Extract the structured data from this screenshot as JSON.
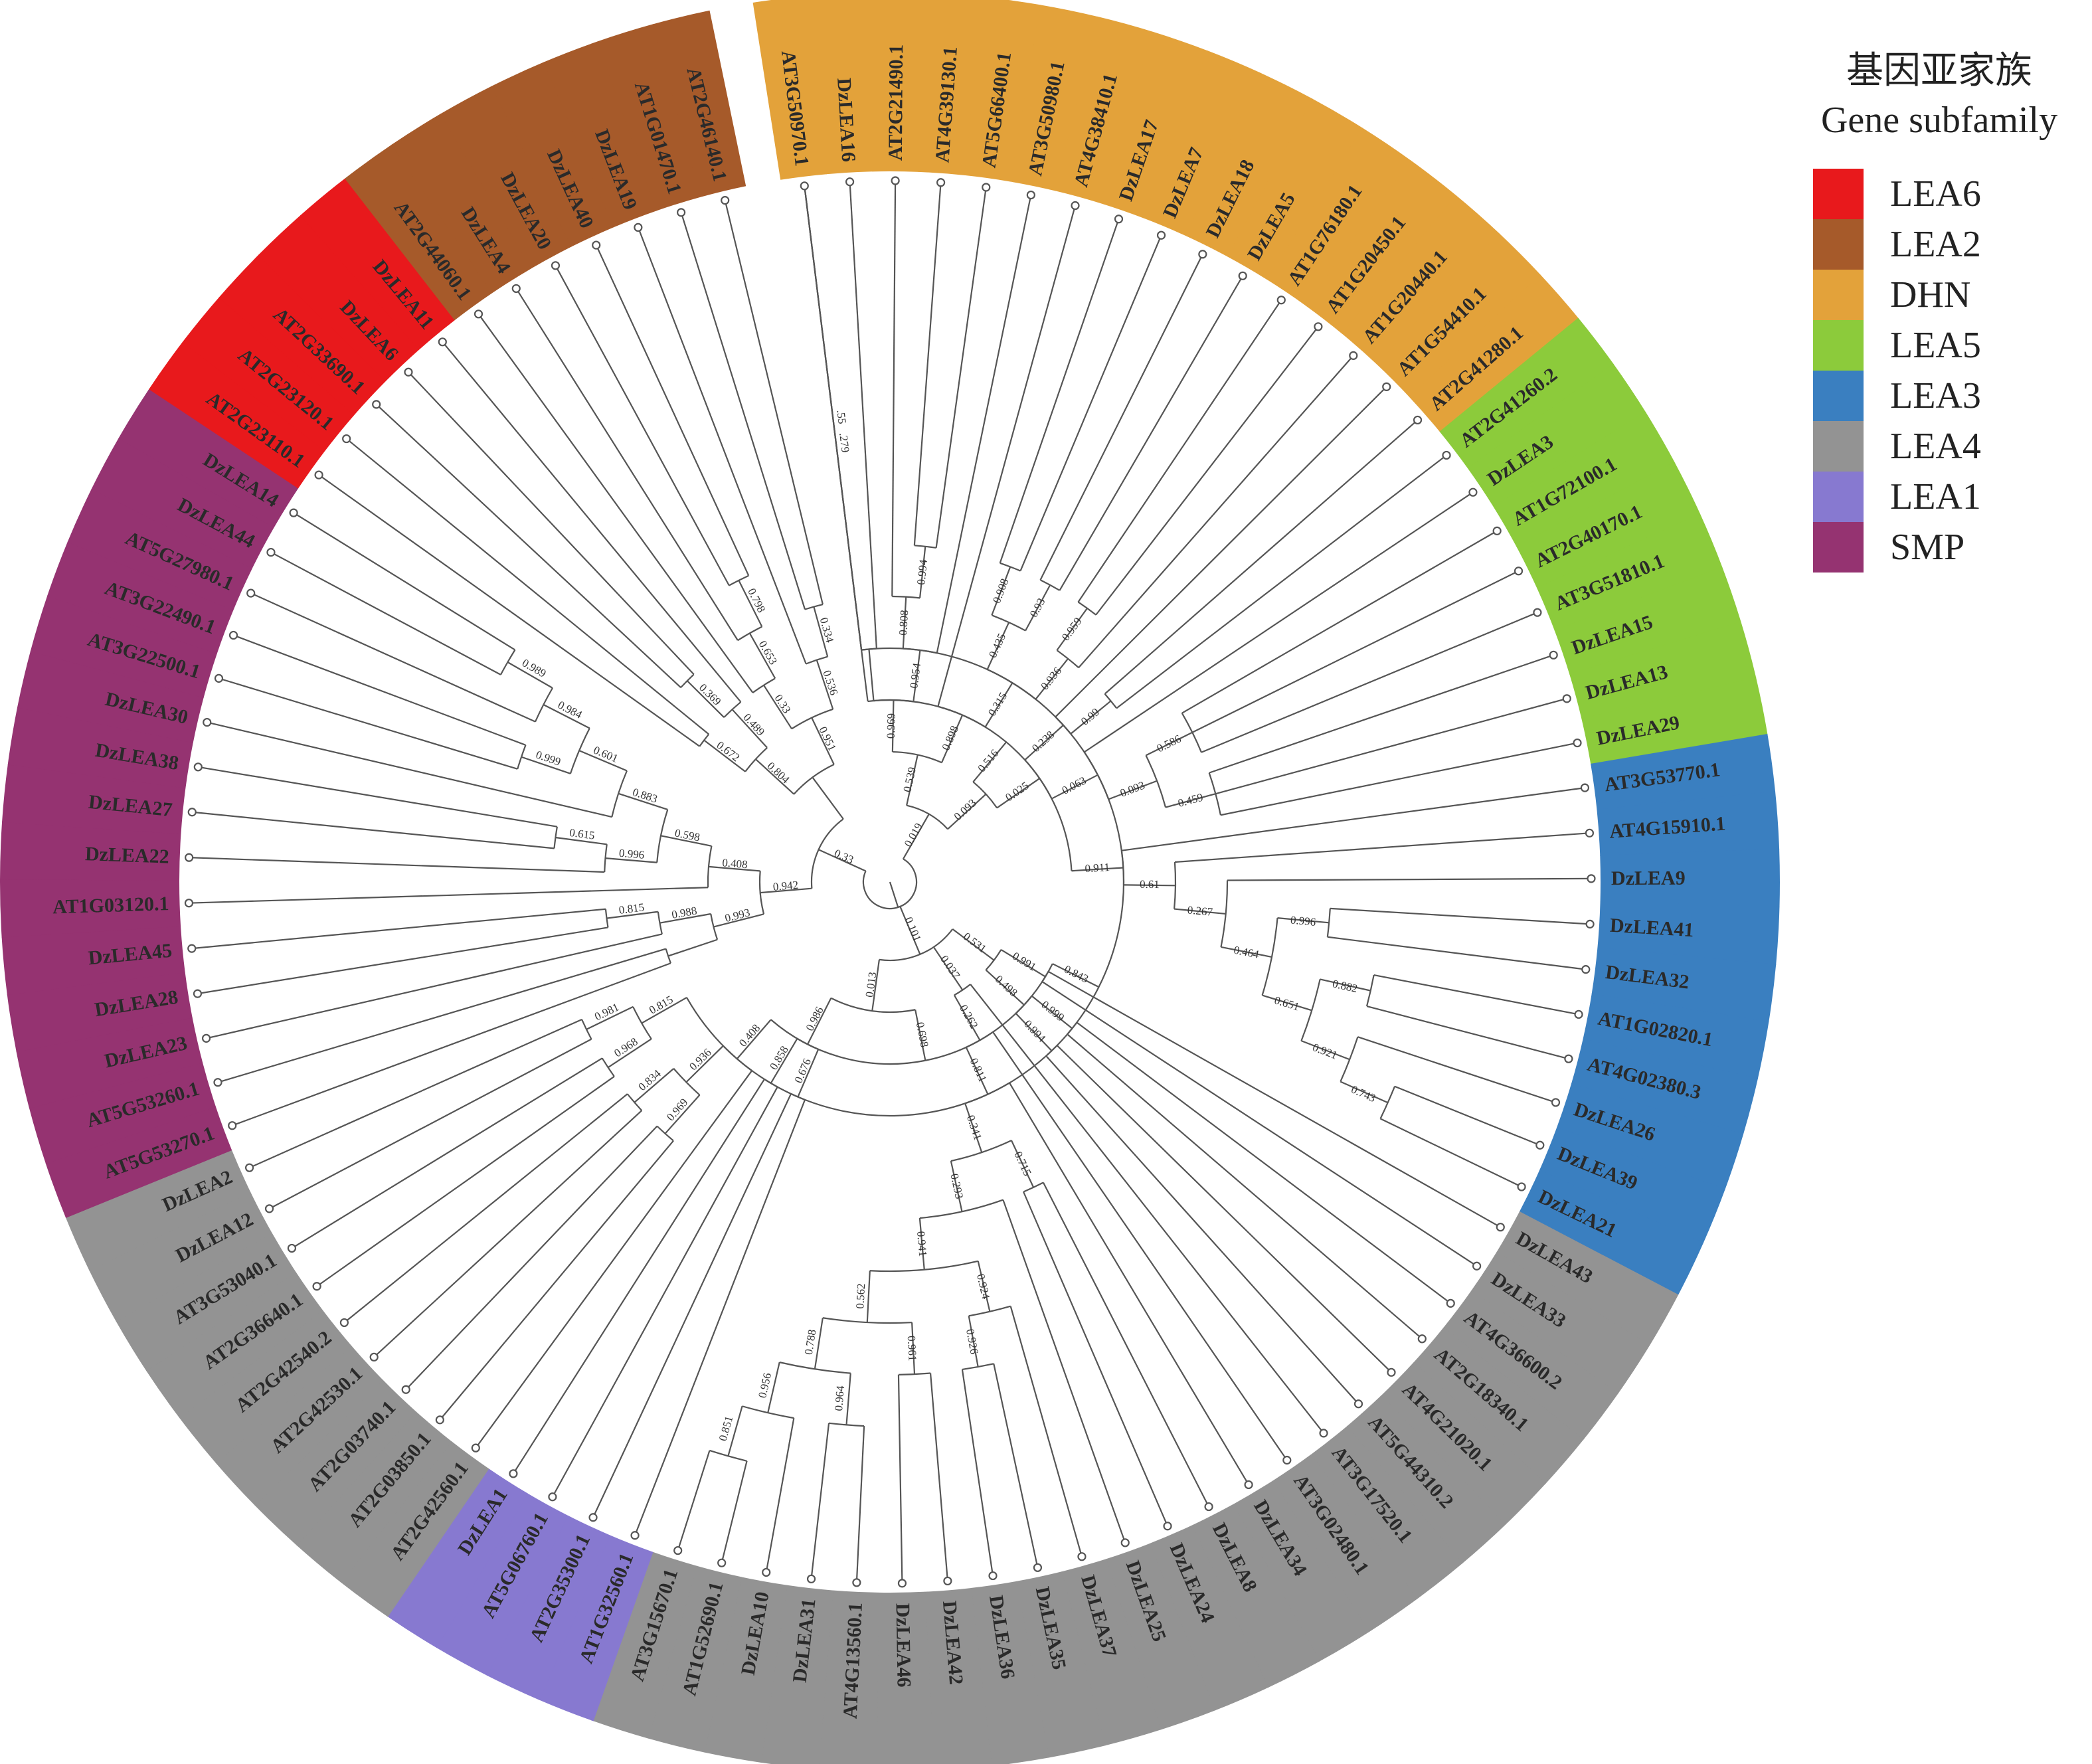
{
  "legend": {
    "title_zh": "基因亚家族",
    "title_en": "Gene subfamily",
    "items": [
      {
        "label": "LEA6",
        "color": "#e8191c"
      },
      {
        "label": "LEA2",
        "color": "#a65a2a"
      },
      {
        "label": "DHN",
        "color": "#e3a23a"
      },
      {
        "label": "LEA5",
        "color": "#8ccb3b"
      },
      {
        "label": "LEA3",
        "color": "#3a7fc0"
      },
      {
        "label": "LEA4",
        "color": "#939393"
      },
      {
        "label": "LEA1",
        "color": "#8779d0"
      },
      {
        "label": "SMP",
        "color": "#953371"
      }
    ]
  },
  "tree": {
    "leaves": [
      {
        "name": "AT3G50970.1",
        "family": "DHN"
      },
      {
        "name": "DzLEA16",
        "family": "DHN"
      },
      {
        "name": "AT2G21490.1",
        "family": "DHN"
      },
      {
        "name": "AT4G39130.1",
        "family": "DHN"
      },
      {
        "name": "AT5G66400.1",
        "family": "DHN"
      },
      {
        "name": "AT3G50980.1",
        "family": "DHN"
      },
      {
        "name": "AT4G38410.1",
        "family": "DHN"
      },
      {
        "name": "DzLEA17",
        "family": "DHN"
      },
      {
        "name": "DzLEA7",
        "family": "DHN"
      },
      {
        "name": "DzLEA18",
        "family": "DHN"
      },
      {
        "name": "DzLEA5",
        "family": "DHN"
      },
      {
        "name": "AT1G76180.1",
        "family": "DHN"
      },
      {
        "name": "AT1G20450.1",
        "family": "DHN"
      },
      {
        "name": "AT1G20440.1",
        "family": "DHN"
      },
      {
        "name": "AT1G54410.1",
        "family": "DHN"
      },
      {
        "name": "AT2G41280.1",
        "family": "DHN"
      },
      {
        "name": "AT2G41260.2",
        "family": "LEA5"
      },
      {
        "name": "DzLEA3",
        "family": "LEA5"
      },
      {
        "name": "AT1G72100.1",
        "family": "LEA5"
      },
      {
        "name": "AT2G40170.1",
        "family": "LEA5"
      },
      {
        "name": "AT3G51810.1",
        "family": "LEA5"
      },
      {
        "name": "DzLEA15",
        "family": "LEA5"
      },
      {
        "name": "DzLEA13",
        "family": "LEA5"
      },
      {
        "name": "DzLEA29",
        "family": "LEA5"
      },
      {
        "name": "AT3G53770.1",
        "family": "LEA3"
      },
      {
        "name": "AT4G15910.1",
        "family": "LEA3"
      },
      {
        "name": "DzLEA9",
        "family": "LEA3"
      },
      {
        "name": "DzLEA41",
        "family": "LEA3"
      },
      {
        "name": "DzLEA32",
        "family": "LEA3"
      },
      {
        "name": "AT1G02820.1",
        "family": "LEA3"
      },
      {
        "name": "AT4G02380.3",
        "family": "LEA3"
      },
      {
        "name": "DzLEA26",
        "family": "LEA3"
      },
      {
        "name": "DzLEA39",
        "family": "LEA3"
      },
      {
        "name": "DzLEA21",
        "family": "LEA3"
      },
      {
        "name": "DzLEA43",
        "family": "LEA4"
      },
      {
        "name": "DzLEA33",
        "family": "LEA4"
      },
      {
        "name": "AT4G36600.2",
        "family": "LEA4"
      },
      {
        "name": "AT2G18340.1",
        "family": "LEA4"
      },
      {
        "name": "AT4G21020.1",
        "family": "LEA4"
      },
      {
        "name": "AT5G44310.2",
        "family": "LEA4"
      },
      {
        "name": "AT3G17520.1",
        "family": "LEA4"
      },
      {
        "name": "AT3G02480.1",
        "family": "LEA4"
      },
      {
        "name": "DzLEA34",
        "family": "LEA4"
      },
      {
        "name": "DzLEA8",
        "family": "LEA4"
      },
      {
        "name": "DzLEA24",
        "family": "LEA4"
      },
      {
        "name": "DzLEA25",
        "family": "LEA4"
      },
      {
        "name": "DzLEA37",
        "family": "LEA4"
      },
      {
        "name": "DzLEA35",
        "family": "LEA4"
      },
      {
        "name": "DzLEA36",
        "family": "LEA4"
      },
      {
        "name": "DzLEA42",
        "family": "LEA4"
      },
      {
        "name": "DzLEA46",
        "family": "LEA4"
      },
      {
        "name": "AT4G13560.1",
        "family": "LEA4"
      },
      {
        "name": "DzLEA31",
        "family": "LEA4"
      },
      {
        "name": "DzLEA10",
        "family": "LEA4"
      },
      {
        "name": "AT1G52690.1",
        "family": "LEA4"
      },
      {
        "name": "AT3G15670.1",
        "family": "LEA4"
      },
      {
        "name": "AT1G32560.1",
        "family": "LEA1"
      },
      {
        "name": "AT2G35300.1",
        "family": "LEA1"
      },
      {
        "name": "AT5G06760.1",
        "family": "LEA1"
      },
      {
        "name": "DzLEA1",
        "family": "LEA1"
      },
      {
        "name": "AT2G42560.1",
        "family": "LEA4"
      },
      {
        "name": "AT2G03850.1",
        "family": "LEA4"
      },
      {
        "name": "AT2G03740.1",
        "family": "LEA4"
      },
      {
        "name": "AT2G42530.1",
        "family": "LEA4"
      },
      {
        "name": "AT2G42540.2",
        "family": "LEA4"
      },
      {
        "name": "AT2G36640.1",
        "family": "LEA4"
      },
      {
        "name": "AT3G53040.1",
        "family": "LEA4"
      },
      {
        "name": "DzLEA12",
        "family": "LEA4"
      },
      {
        "name": "DzLEA2",
        "family": "LEA4"
      },
      {
        "name": "AT5G53270.1",
        "family": "SMP"
      },
      {
        "name": "AT5G53260.1",
        "family": "SMP"
      },
      {
        "name": "DzLEA23",
        "family": "SMP"
      },
      {
        "name": "DzLEA28",
        "family": "SMP"
      },
      {
        "name": "DzLEA45",
        "family": "SMP"
      },
      {
        "name": "AT1G03120.1",
        "family": "SMP"
      },
      {
        "name": "DzLEA22",
        "family": "SMP"
      },
      {
        "name": "DzLEA27",
        "family": "SMP"
      },
      {
        "name": "DzLEA38",
        "family": "SMP"
      },
      {
        "name": "DzLEA30",
        "family": "SMP"
      },
      {
        "name": "AT3G22500.1",
        "family": "SMP"
      },
      {
        "name": "AT3G22490.1",
        "family": "SMP"
      },
      {
        "name": "AT5G27980.1",
        "family": "SMP"
      },
      {
        "name": "DzLEA44",
        "family": "SMP"
      },
      {
        "name": "DzLEA14",
        "family": "SMP"
      },
      {
        "name": "AT2G23110.1",
        "family": "LEA6"
      },
      {
        "name": "AT2G23120.1",
        "family": "LEA6"
      },
      {
        "name": "AT2G33690.1",
        "family": "LEA6"
      },
      {
        "name": "DzLEA6",
        "family": "LEA6"
      },
      {
        "name": "DzLEA11",
        "family": "LEA6"
      },
      {
        "name": "AT2G44060.1",
        "family": "LEA2"
      },
      {
        "name": "DzLEA4",
        "family": "LEA2"
      },
      {
        "name": "DzLEA20",
        "family": "LEA2"
      },
      {
        "name": "DzLEA40",
        "family": "LEA2"
      },
      {
        "name": "DzLEA19",
        "family": "LEA2"
      },
      {
        "name": "AT1G01470.1",
        "family": "LEA2"
      },
      {
        "name": "AT2G46140.1",
        "family": "LEA2"
      }
    ],
    "newick": "(((((((((0,1),((2,(3,4)0.994)0.808,5)0.954)0.969,(6,(((7,8)0.908,(9,10)0.93)0.435,((11,12)0.959,13)0.936)0.315)0.898)0.539)0.488,(((14,(15,16)0.99)0.238,(17,((18,19,20)0.586,(21,22,23)0.459)0.093)0.063)0.025,((24,(25,(26,((27,28)0.996,((29,30)0.882,(31,(32,33)0.743)0.921)0.651)0.464)0.267)0.61)0.911,0.279)0.516)0.093)0.019,((((34,35)0.991,((36,37)0.999,(38,39)0.994)0.498)0.531,(40,(41,(42,((43,44)0.715,(45,((46,(47,48)0.926)0.924,((49,50)0.961,((51,52)0.964,(53,(54,55)0.851)0.956)0.788)0.562)0.941)0.293)0.341)0.811)0.262)0.037,(((56,57)0.676,(58,59)0.858)0.986,((60,((61,62)0.969,(63,64)0.834)0.936)0.408,(((65,66)0.968,(67,68)0.981)0.815,0.55)0.843)0.698)0.013)0.101)0.039,(((((69,70),(71,(72,73)0.815)0.988)0.993,((74,((75,(76,77)0.615)0.996,(78,((79,80)0.999,(81,(82,83)0.989)0.984)0.601)0.883)0.598)0.408)0.455)0.942,(((84,85)0.672,((86,87)0.369,88)0.489)0.804,((89,(90,(91,92)0.798)0.653)0.33,(93,(94,95)0.334)0.536)0.951))0.33))"
  }
}
